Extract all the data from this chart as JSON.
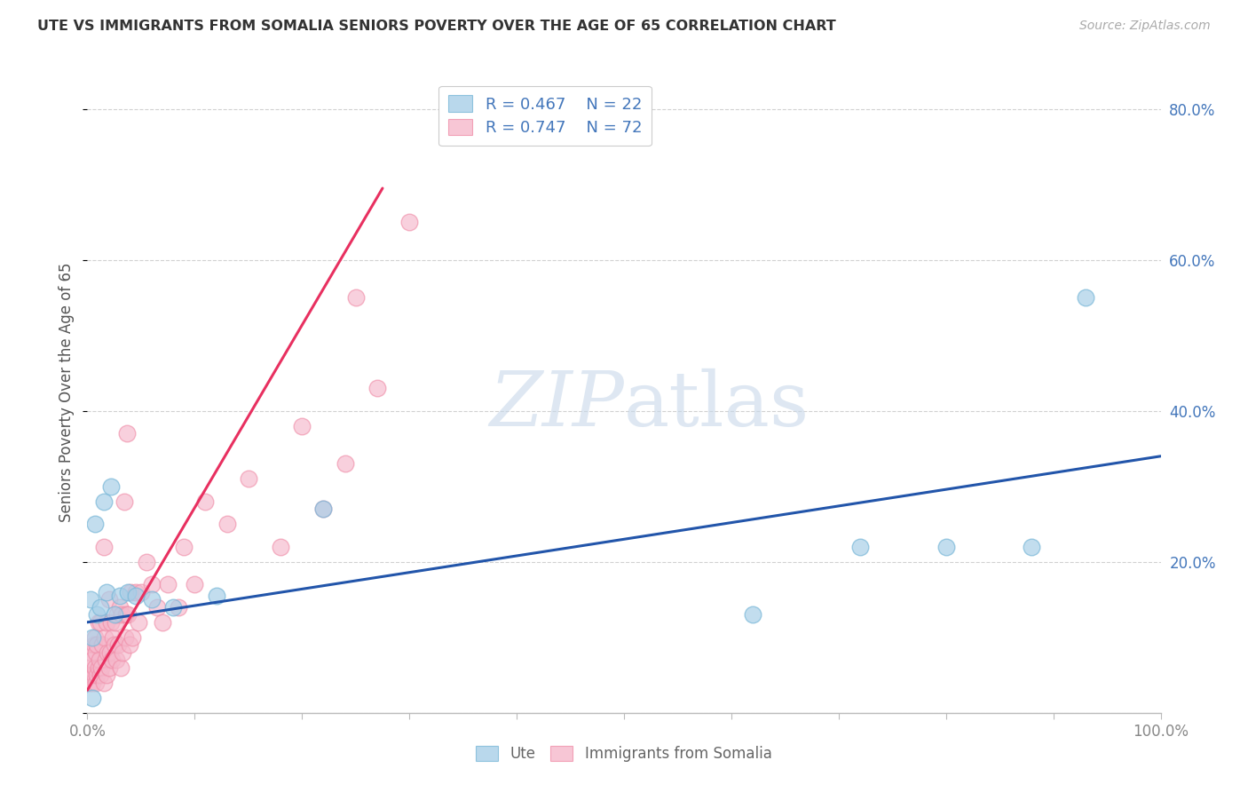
{
  "title": "UTE VS IMMIGRANTS FROM SOMALIA SENIORS POVERTY OVER THE AGE OF 65 CORRELATION CHART",
  "source": "Source: ZipAtlas.com",
  "ylabel": "Seniors Poverty Over the Age of 65",
  "xlim": [
    0,
    1.0
  ],
  "ylim": [
    0,
    0.85
  ],
  "legend_r_ute": "R = 0.467",
  "legend_n_ute": "N = 22",
  "legend_r_somalia": "R = 0.747",
  "legend_n_somalia": "N = 72",
  "color_ute_fill": "#a8cfe8",
  "color_ute_edge": "#7ab8d8",
  "color_somalia_fill": "#f5b8cb",
  "color_somalia_edge": "#f090aa",
  "color_trendline_ute": "#2255aa",
  "color_trendline_somalia": "#e83060",
  "color_axis_val": "#4477bb",
  "watermark_color": "#c8d8ea",
  "background_color": "#ffffff",
  "grid_color": "#cccccc",
  "ute_x": [
    0.003,
    0.005,
    0.007,
    0.009,
    0.012,
    0.015,
    0.018,
    0.022,
    0.025,
    0.03,
    0.038,
    0.045,
    0.06,
    0.08,
    0.12,
    0.22,
    0.62,
    0.72,
    0.8,
    0.88,
    0.93,
    0.005
  ],
  "ute_y": [
    0.15,
    0.02,
    0.25,
    0.13,
    0.14,
    0.28,
    0.16,
    0.3,
    0.13,
    0.155,
    0.16,
    0.155,
    0.15,
    0.14,
    0.155,
    0.27,
    0.13,
    0.22,
    0.22,
    0.22,
    0.55,
    0.1
  ],
  "somalia_x": [
    0.002,
    0.003,
    0.004,
    0.004,
    0.005,
    0.005,
    0.006,
    0.006,
    0.007,
    0.007,
    0.008,
    0.008,
    0.009,
    0.009,
    0.01,
    0.01,
    0.011,
    0.012,
    0.012,
    0.013,
    0.014,
    0.015,
    0.015,
    0.016,
    0.017,
    0.018,
    0.018,
    0.019,
    0.02,
    0.02,
    0.021,
    0.022,
    0.023,
    0.024,
    0.025,
    0.026,
    0.027,
    0.028,
    0.029,
    0.03,
    0.031,
    0.032,
    0.033,
    0.034,
    0.035,
    0.036,
    0.037,
    0.038,
    0.039,
    0.04,
    0.042,
    0.045,
    0.048,
    0.05,
    0.055,
    0.06,
    0.065,
    0.07,
    0.075,
    0.085,
    0.09,
    0.1,
    0.11,
    0.13,
    0.15,
    0.18,
    0.2,
    0.22,
    0.24,
    0.25,
    0.27,
    0.3
  ],
  "somalia_y": [
    0.04,
    0.06,
    0.05,
    0.08,
    0.04,
    0.07,
    0.05,
    0.09,
    0.06,
    0.1,
    0.04,
    0.08,
    0.05,
    0.09,
    0.06,
    0.12,
    0.07,
    0.05,
    0.12,
    0.06,
    0.09,
    0.04,
    0.22,
    0.1,
    0.07,
    0.12,
    0.05,
    0.08,
    0.06,
    0.15,
    0.08,
    0.12,
    0.07,
    0.1,
    0.09,
    0.12,
    0.07,
    0.13,
    0.09,
    0.14,
    0.06,
    0.13,
    0.08,
    0.28,
    0.1,
    0.13,
    0.37,
    0.13,
    0.09,
    0.16,
    0.1,
    0.16,
    0.12,
    0.16,
    0.2,
    0.17,
    0.14,
    0.12,
    0.17,
    0.14,
    0.22,
    0.17,
    0.28,
    0.25,
    0.31,
    0.22,
    0.38,
    0.27,
    0.33,
    0.55,
    0.43,
    0.65
  ],
  "ute_trend_x0": 0.0,
  "ute_trend_x1": 1.0,
  "ute_trend_y0": 0.12,
  "ute_trend_y1": 0.34,
  "somalia_trend_x0": 0.0,
  "somalia_trend_x1": 0.275,
  "somalia_trend_y0": 0.03,
  "somalia_trend_y1": 0.695
}
